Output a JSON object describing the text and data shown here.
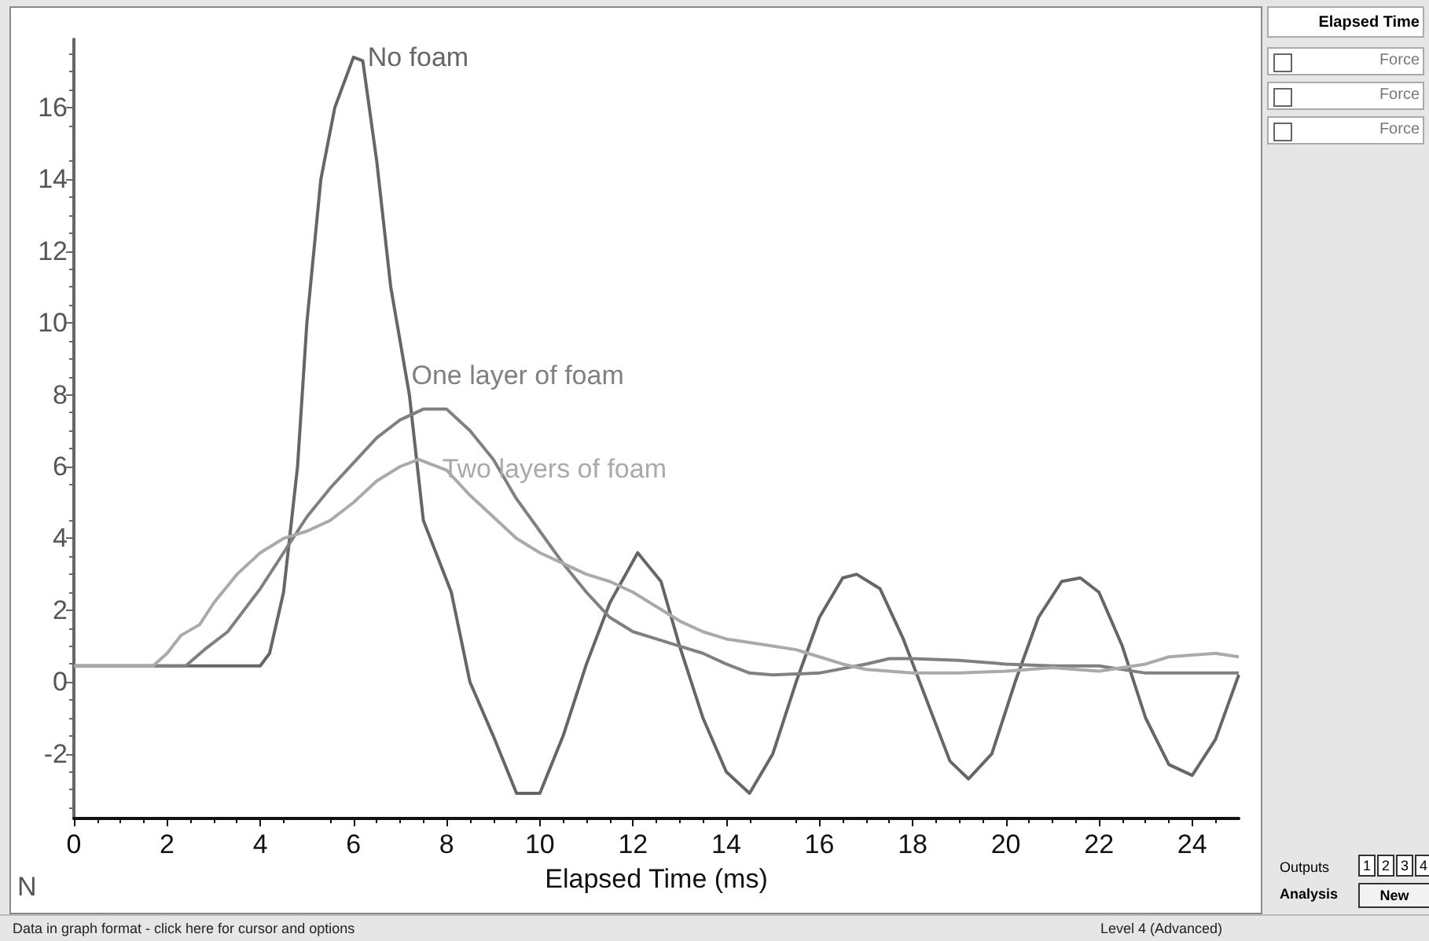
{
  "chart_data": {
    "type": "line",
    "xlabel": "Elapsed Time (ms)",
    "ylabel": "N",
    "xlim": [
      0,
      25
    ],
    "ylim": [
      -3.8,
      17.9
    ],
    "xticks": [
      0,
      2,
      4,
      6,
      8,
      10,
      12,
      14,
      16,
      18,
      20,
      22,
      24
    ],
    "yticks": [
      -2,
      0,
      2,
      4,
      6,
      8,
      10,
      12,
      14,
      16
    ],
    "grid": false,
    "legend": false,
    "marker": "none",
    "line_style": "solid",
    "series": [
      {
        "name": "No foam",
        "color": "#666666",
        "x": [
          0,
          2,
          4,
          4.2,
          4.5,
          4.8,
          5.0,
          5.3,
          5.6,
          6.0,
          6.2,
          6.5,
          6.8,
          7.2,
          7.5,
          7.8,
          8.1,
          8.5,
          9.0,
          9.5,
          10.0,
          10.5,
          11.0,
          11.5,
          12.1,
          12.6,
          13.0,
          13.5,
          14.0,
          14.5,
          15.0,
          15.5,
          16.0,
          16.5,
          16.8,
          17.3,
          17.8,
          18.3,
          18.8,
          19.2,
          19.7,
          20.2,
          20.7,
          21.2,
          21.6,
          22.0,
          22.5,
          23.0,
          23.5,
          24.0,
          24.5,
          25.0
        ],
        "values": [
          0.45,
          0.45,
          0.45,
          0.8,
          2.5,
          6,
          10,
          14,
          16,
          17.4,
          17.3,
          14.5,
          11,
          8,
          4.5,
          3.5,
          2.5,
          0,
          -1.5,
          -3.1,
          -3.1,
          -1.5,
          0.5,
          2.2,
          3.6,
          2.8,
          1.0,
          -1,
          -2.5,
          -3.1,
          -2,
          0,
          1.8,
          2.9,
          3.0,
          2.6,
          1.2,
          -0.5,
          -2.2,
          -2.7,
          -2.0,
          0,
          1.8,
          2.8,
          2.9,
          2.5,
          1.0,
          -1,
          -2.3,
          -2.6,
          -1.6,
          0.2
        ]
      },
      {
        "name": "One layer of foam",
        "color": "#808080",
        "x": [
          0,
          2.0,
          2.4,
          2.8,
          3.3,
          4,
          4.5,
          5,
          5.5,
          6,
          6.5,
          7,
          7.5,
          8,
          8.5,
          9,
          9.5,
          10,
          10.5,
          11,
          11.5,
          12,
          12.5,
          13,
          13.5,
          14,
          14.5,
          15,
          16,
          17,
          17.5,
          18,
          19,
          20,
          21,
          22,
          23,
          24,
          25
        ],
        "values": [
          0.45,
          0.45,
          0.45,
          0.9,
          1.4,
          2.6,
          3.6,
          4.6,
          5.4,
          6.1,
          6.8,
          7.3,
          7.6,
          7.6,
          7.0,
          6.2,
          5.1,
          4.2,
          3.3,
          2.5,
          1.8,
          1.4,
          1.2,
          1.0,
          0.8,
          0.5,
          0.25,
          0.2,
          0.25,
          0.5,
          0.65,
          0.65,
          0.6,
          0.5,
          0.45,
          0.45,
          0.25,
          0.25,
          0.25
        ]
      },
      {
        "name": "Two layers of foam",
        "color": "#aaaaaa",
        "x": [
          0,
          1.7,
          2.0,
          2.3,
          2.7,
          3.0,
          3.5,
          4,
          4.5,
          5,
          5.5,
          6,
          6.5,
          7,
          7.4,
          8,
          8.5,
          9,
          9.5,
          10,
          10.5,
          11,
          11.5,
          12,
          12.5,
          13,
          13.5,
          14,
          14.5,
          15,
          15.5,
          16,
          16.5,
          17,
          18,
          19,
          20,
          21,
          22,
          23,
          23.5,
          24.5,
          25
        ],
        "values": [
          0.45,
          0.45,
          0.8,
          1.3,
          1.6,
          2.2,
          3.0,
          3.6,
          4.0,
          4.2,
          4.5,
          5.0,
          5.6,
          6.0,
          6.2,
          5.9,
          5.2,
          4.6,
          4.0,
          3.6,
          3.3,
          3.0,
          2.8,
          2.5,
          2.1,
          1.7,
          1.4,
          1.2,
          1.1,
          1.0,
          0.9,
          0.7,
          0.5,
          0.35,
          0.25,
          0.25,
          0.3,
          0.4,
          0.3,
          0.5,
          0.7,
          0.8,
          0.7
        ]
      }
    ],
    "annotations": [
      "Elapsed Time",
      "Force",
      "Force",
      "Force",
      "Outputs",
      "1",
      "2",
      "3",
      "4",
      "Analysis",
      "New",
      "Data in graph format - click here for cursor and options",
      "Level 4  (Advanced)"
    ]
  }
}
